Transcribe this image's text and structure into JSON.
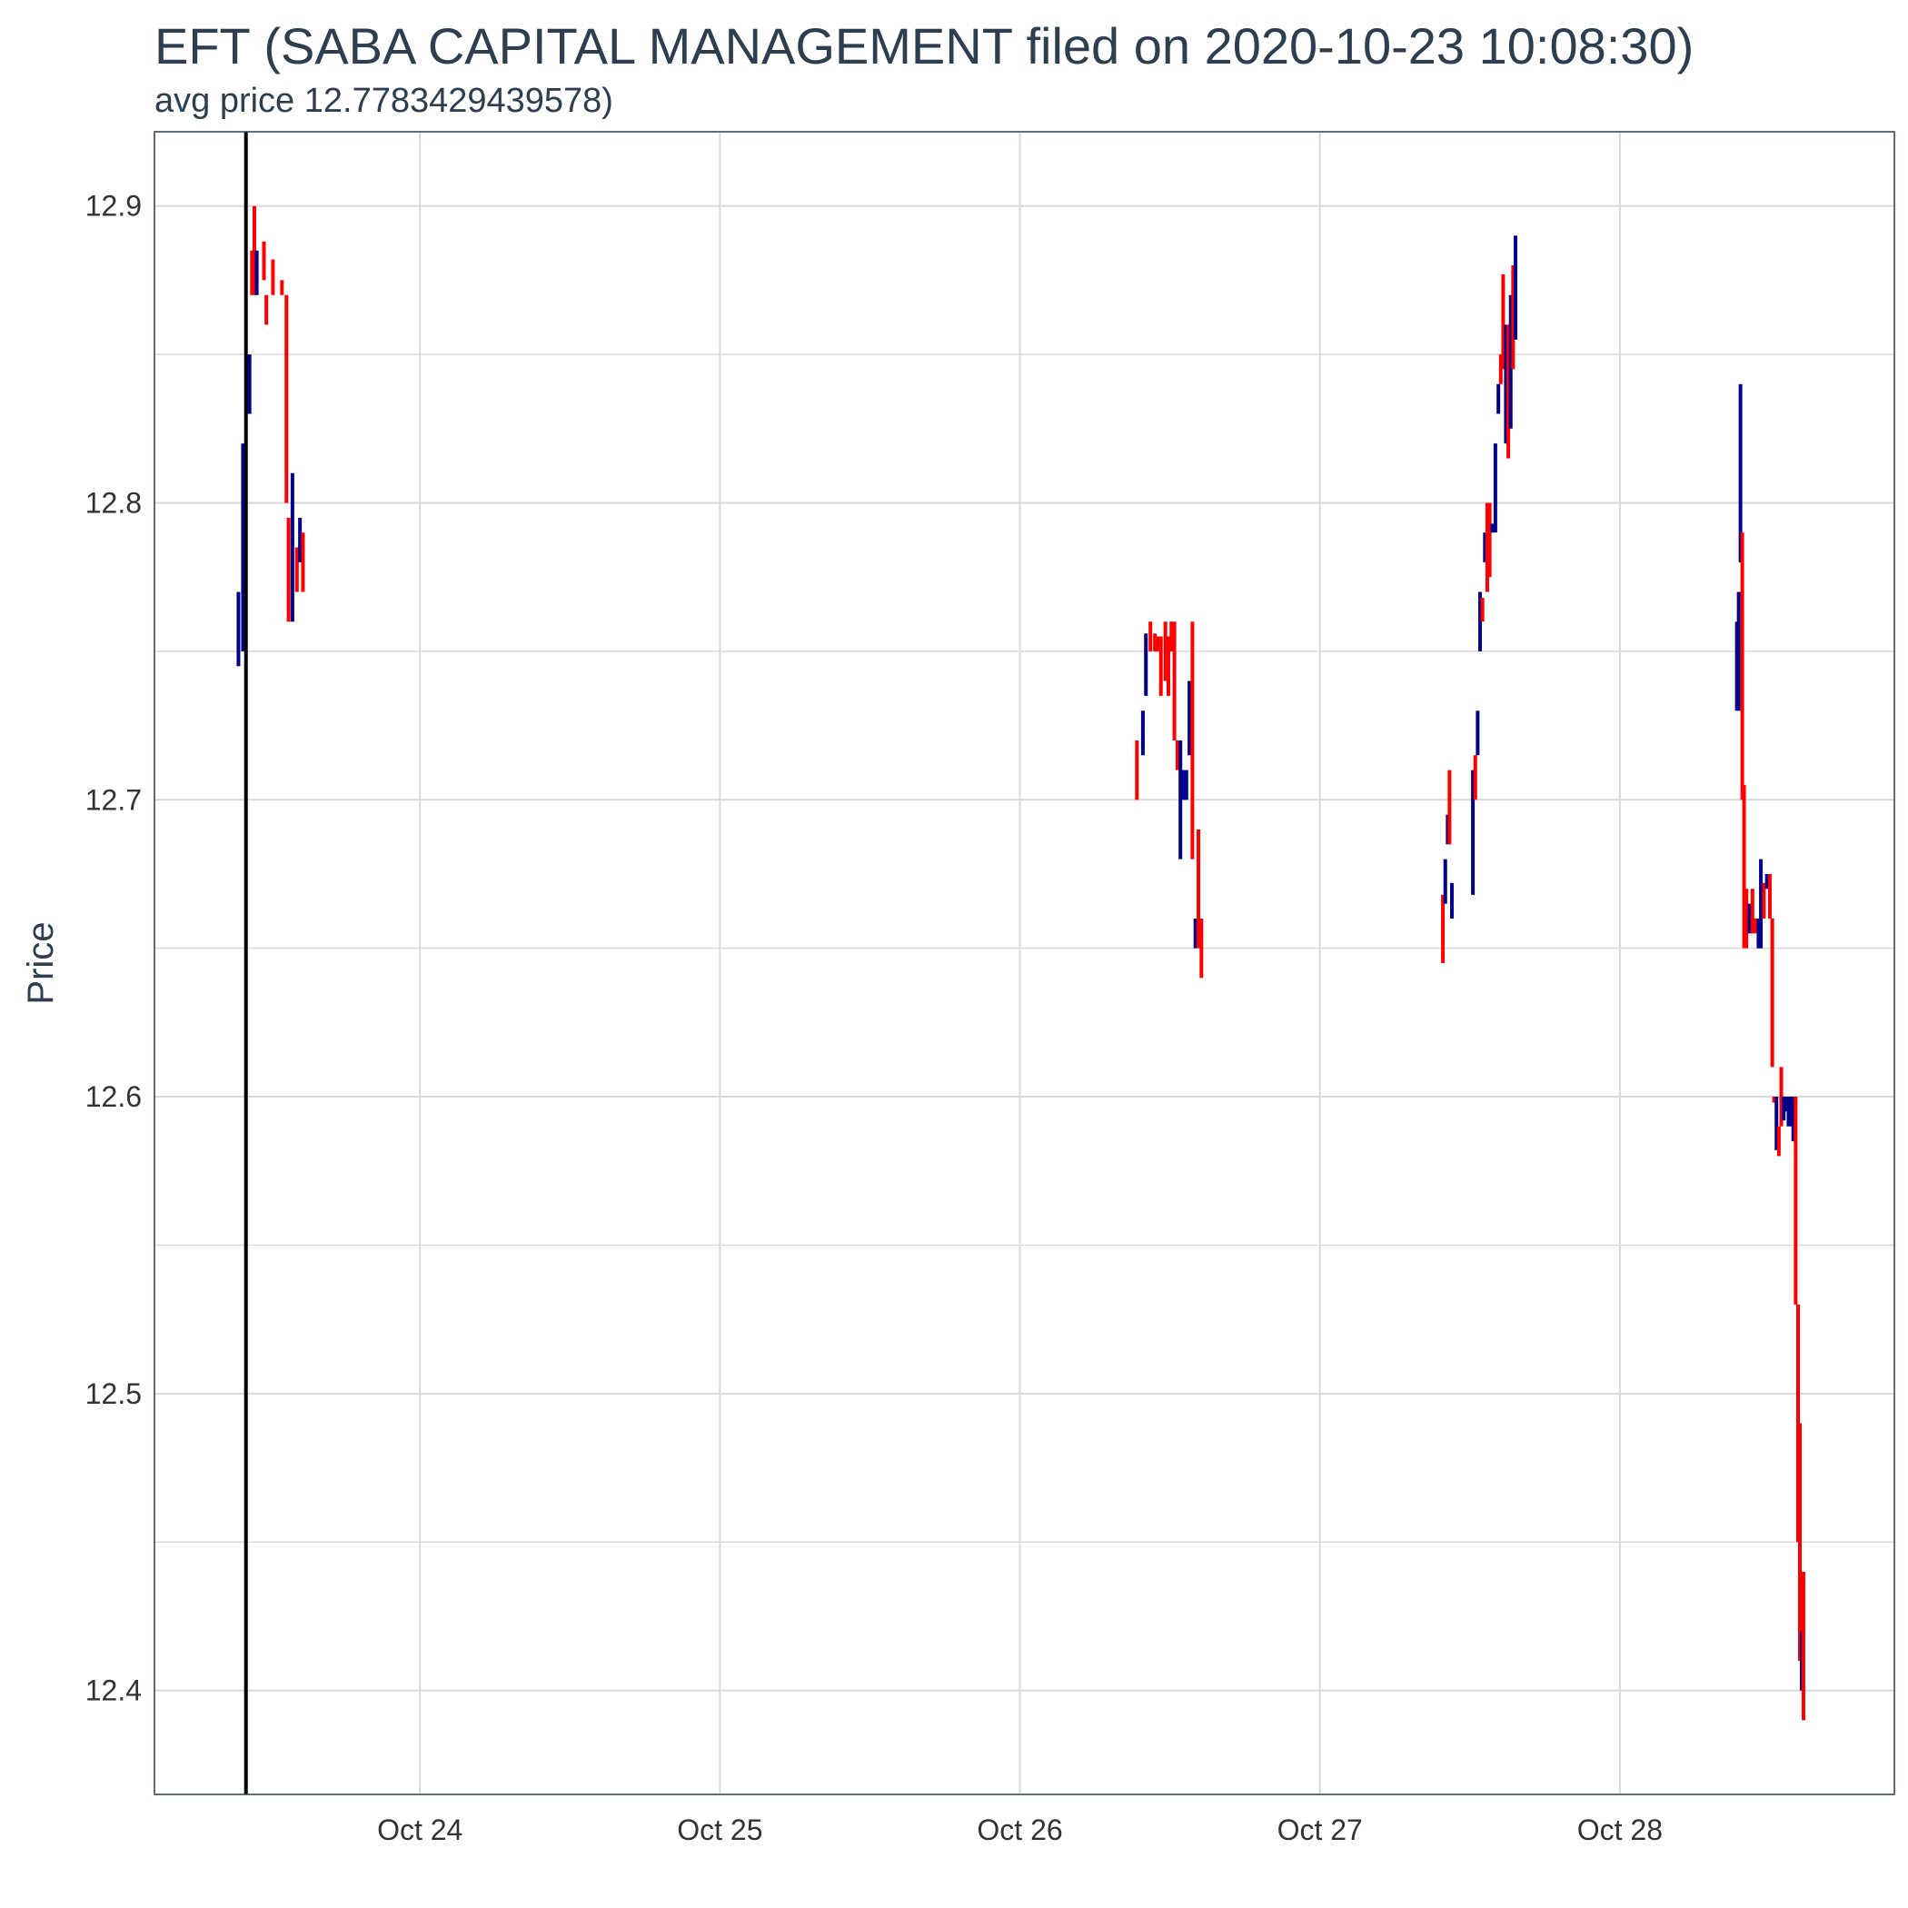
{
  "chart_data": {
    "type": "ohlc",
    "title": "EFT (SABA CAPITAL MANAGEMENT filed on 2020-10-23 10:08:30)",
    "subtitle": "avg price 12.7783429439578)",
    "xlabel": "",
    "ylabel": "Price",
    "x_ticks": [
      "Oct 24",
      "Oct 25",
      "Oct 26",
      "Oct 27",
      "Oct 28"
    ],
    "x_tick_values": [
      24,
      25,
      26,
      27,
      28
    ],
    "y_ticks": [
      "12.4",
      "12.5",
      "12.6",
      "12.7",
      "12.8",
      "12.9"
    ],
    "y_tick_values": [
      12.4,
      12.5,
      12.6,
      12.7,
      12.8,
      12.9
    ],
    "xlim": [
      23.115,
      28.915
    ],
    "ylim": [
      12.365,
      12.925
    ],
    "grid": true,
    "filing_marker_x": 23.42,
    "colors": {
      "up": "#00008b",
      "down": "#ff0000",
      "marker": "#000000",
      "grid": "#d9d9d9",
      "axis": "#2c3e50"
    },
    "bars": [
      {
        "x": 23.395,
        "low": 12.745,
        "high": 12.77,
        "dir": "up"
      },
      {
        "x": 23.41,
        "low": 12.75,
        "high": 12.82,
        "dir": "up"
      },
      {
        "x": 23.425,
        "low": 12.83,
        "high": 12.85,
        "dir": "up"
      },
      {
        "x": 23.432,
        "low": 12.83,
        "high": 12.85,
        "dir": "up"
      },
      {
        "x": 23.44,
        "low": 12.87,
        "high": 12.885,
        "dir": "down"
      },
      {
        "x": 23.448,
        "low": 12.87,
        "high": 12.9,
        "dir": "down"
      },
      {
        "x": 23.456,
        "low": 12.87,
        "high": 12.885,
        "dir": "up"
      },
      {
        "x": 23.48,
        "low": 12.875,
        "high": 12.888,
        "dir": "down"
      },
      {
        "x": 23.488,
        "low": 12.86,
        "high": 12.87,
        "dir": "down"
      },
      {
        "x": 23.51,
        "low": 12.87,
        "high": 12.882,
        "dir": "down"
      },
      {
        "x": 23.54,
        "low": 12.87,
        "high": 12.875,
        "dir": "down"
      },
      {
        "x": 23.555,
        "low": 12.8,
        "high": 12.87,
        "dir": "down"
      },
      {
        "x": 23.562,
        "low": 12.76,
        "high": 12.795,
        "dir": "down"
      },
      {
        "x": 23.575,
        "low": 12.76,
        "high": 12.81,
        "dir": "up"
      },
      {
        "x": 23.59,
        "low": 12.77,
        "high": 12.785,
        "dir": "down"
      },
      {
        "x": 23.6,
        "low": 12.78,
        "high": 12.795,
        "dir": "up"
      },
      {
        "x": 23.61,
        "low": 12.77,
        "high": 12.79,
        "dir": "down"
      },
      {
        "x": 26.39,
        "low": 12.7,
        "high": 12.72,
        "dir": "down"
      },
      {
        "x": 26.41,
        "low": 12.715,
        "high": 12.73,
        "dir": "up"
      },
      {
        "x": 26.42,
        "low": 12.735,
        "high": 12.756,
        "dir": "up"
      },
      {
        "x": 26.435,
        "low": 12.75,
        "high": 12.76,
        "dir": "down"
      },
      {
        "x": 26.45,
        "low": 12.75,
        "high": 12.756,
        "dir": "down"
      },
      {
        "x": 26.46,
        "low": 12.75,
        "high": 12.755,
        "dir": "down"
      },
      {
        "x": 26.47,
        "low": 12.735,
        "high": 12.755,
        "dir": "down"
      },
      {
        "x": 26.485,
        "low": 12.74,
        "high": 12.76,
        "dir": "down"
      },
      {
        "x": 26.495,
        "low": 12.735,
        "high": 12.755,
        "dir": "down"
      },
      {
        "x": 26.505,
        "low": 12.75,
        "high": 12.76,
        "dir": "down"
      },
      {
        "x": 26.515,
        "low": 12.72,
        "high": 12.76,
        "dir": "down"
      },
      {
        "x": 26.525,
        "low": 12.71,
        "high": 12.72,
        "dir": "down"
      },
      {
        "x": 26.535,
        "low": 12.68,
        "high": 12.72,
        "dir": "up"
      },
      {
        "x": 26.545,
        "low": 12.7,
        "high": 12.71,
        "dir": "up"
      },
      {
        "x": 26.555,
        "low": 12.7,
        "high": 12.71,
        "dir": "up"
      },
      {
        "x": 26.565,
        "low": 12.715,
        "high": 12.74,
        "dir": "up"
      },
      {
        "x": 26.575,
        "low": 12.68,
        "high": 12.76,
        "dir": "down"
      },
      {
        "x": 26.585,
        "low": 12.65,
        "high": 12.66,
        "dir": "up"
      },
      {
        "x": 26.595,
        "low": 12.65,
        "high": 12.69,
        "dir": "down"
      },
      {
        "x": 26.605,
        "low": 12.64,
        "high": 12.66,
        "dir": "down"
      },
      {
        "x": 27.41,
        "low": 12.645,
        "high": 12.668,
        "dir": "down"
      },
      {
        "x": 27.418,
        "low": 12.665,
        "high": 12.68,
        "dir": "up"
      },
      {
        "x": 27.426,
        "low": 12.685,
        "high": 12.695,
        "dir": "up"
      },
      {
        "x": 27.432,
        "low": 12.685,
        "high": 12.71,
        "dir": "down"
      },
      {
        "x": 27.44,
        "low": 12.66,
        "high": 12.672,
        "dir": "up"
      },
      {
        "x": 27.51,
        "low": 12.668,
        "high": 12.71,
        "dir": "up"
      },
      {
        "x": 27.518,
        "low": 12.7,
        "high": 12.715,
        "dir": "down"
      },
      {
        "x": 27.526,
        "low": 12.715,
        "high": 12.73,
        "dir": "up"
      },
      {
        "x": 27.534,
        "low": 12.75,
        "high": 12.77,
        "dir": "up"
      },
      {
        "x": 27.542,
        "low": 12.76,
        "high": 12.768,
        "dir": "down"
      },
      {
        "x": 27.55,
        "low": 12.78,
        "high": 12.79,
        "dir": "up"
      },
      {
        "x": 27.558,
        "low": 12.77,
        "high": 12.8,
        "dir": "down"
      },
      {
        "x": 27.566,
        "low": 12.775,
        "high": 12.8,
        "dir": "down"
      },
      {
        "x": 27.575,
        "low": 12.79,
        "high": 12.793,
        "dir": "up"
      },
      {
        "x": 27.585,
        "low": 12.79,
        "high": 12.82,
        "dir": "up"
      },
      {
        "x": 27.595,
        "low": 12.83,
        "high": 12.84,
        "dir": "up"
      },
      {
        "x": 27.603,
        "low": 12.84,
        "high": 12.85,
        "dir": "down"
      },
      {
        "x": 27.611,
        "low": 12.845,
        "high": 12.877,
        "dir": "down"
      },
      {
        "x": 27.62,
        "low": 12.82,
        "high": 12.86,
        "dir": "up"
      },
      {
        "x": 27.628,
        "low": 12.815,
        "high": 12.86,
        "dir": "down"
      },
      {
        "x": 27.636,
        "low": 12.825,
        "high": 12.87,
        "dir": "up"
      },
      {
        "x": 27.644,
        "low": 12.845,
        "high": 12.88,
        "dir": "down"
      },
      {
        "x": 27.652,
        "low": 12.855,
        "high": 12.89,
        "dir": "up"
      },
      {
        "x": 28.39,
        "low": 12.73,
        "high": 12.76,
        "dir": "up"
      },
      {
        "x": 28.396,
        "low": 12.73,
        "high": 12.77,
        "dir": "up"
      },
      {
        "x": 28.402,
        "low": 12.78,
        "high": 12.84,
        "dir": "up"
      },
      {
        "x": 28.408,
        "low": 12.7,
        "high": 12.79,
        "dir": "down"
      },
      {
        "x": 28.414,
        "low": 12.65,
        "high": 12.705,
        "dir": "down"
      },
      {
        "x": 28.422,
        "low": 12.65,
        "high": 12.67,
        "dir": "down"
      },
      {
        "x": 28.432,
        "low": 12.655,
        "high": 12.665,
        "dir": "up"
      },
      {
        "x": 28.442,
        "low": 12.655,
        "high": 12.67,
        "dir": "down"
      },
      {
        "x": 28.452,
        "low": 12.655,
        "high": 12.66,
        "dir": "down"
      },
      {
        "x": 28.462,
        "low": 12.65,
        "high": 12.66,
        "dir": "up"
      },
      {
        "x": 28.47,
        "low": 12.65,
        "high": 12.68,
        "dir": "up"
      },
      {
        "x": 28.48,
        "low": 12.66,
        "high": 12.672,
        "dir": "down"
      },
      {
        "x": 28.49,
        "low": 12.67,
        "high": 12.675,
        "dir": "up"
      },
      {
        "x": 28.5,
        "low": 12.66,
        "high": 12.675,
        "dir": "down"
      },
      {
        "x": 28.508,
        "low": 12.61,
        "high": 12.66,
        "dir": "down"
      },
      {
        "x": 28.514,
        "low": 12.598,
        "high": 12.6,
        "dir": "down"
      },
      {
        "x": 28.522,
        "low": 12.582,
        "high": 12.6,
        "dir": "up"
      },
      {
        "x": 28.53,
        "low": 12.58,
        "high": 12.59,
        "dir": "down"
      },
      {
        "x": 28.538,
        "low": 12.59,
        "high": 12.61,
        "dir": "down"
      },
      {
        "x": 28.546,
        "low": 12.592,
        "high": 12.6,
        "dir": "up"
      },
      {
        "x": 28.554,
        "low": 12.595,
        "high": 12.6,
        "dir": "up"
      },
      {
        "x": 28.562,
        "low": 12.59,
        "high": 12.6,
        "dir": "up"
      },
      {
        "x": 28.57,
        "low": 12.59,
        "high": 12.6,
        "dir": "up"
      },
      {
        "x": 28.578,
        "low": 12.585,
        "high": 12.6,
        "dir": "up"
      },
      {
        "x": 28.586,
        "low": 12.53,
        "high": 12.6,
        "dir": "down"
      },
      {
        "x": 28.594,
        "low": 12.45,
        "high": 12.53,
        "dir": "down"
      },
      {
        "x": 28.6,
        "low": 12.41,
        "high": 12.49,
        "dir": "down"
      },
      {
        "x": 28.606,
        "low": 12.4,
        "high": 12.42,
        "dir": "up"
      },
      {
        "x": 28.612,
        "low": 12.39,
        "high": 12.44,
        "dir": "down"
      }
    ]
  }
}
